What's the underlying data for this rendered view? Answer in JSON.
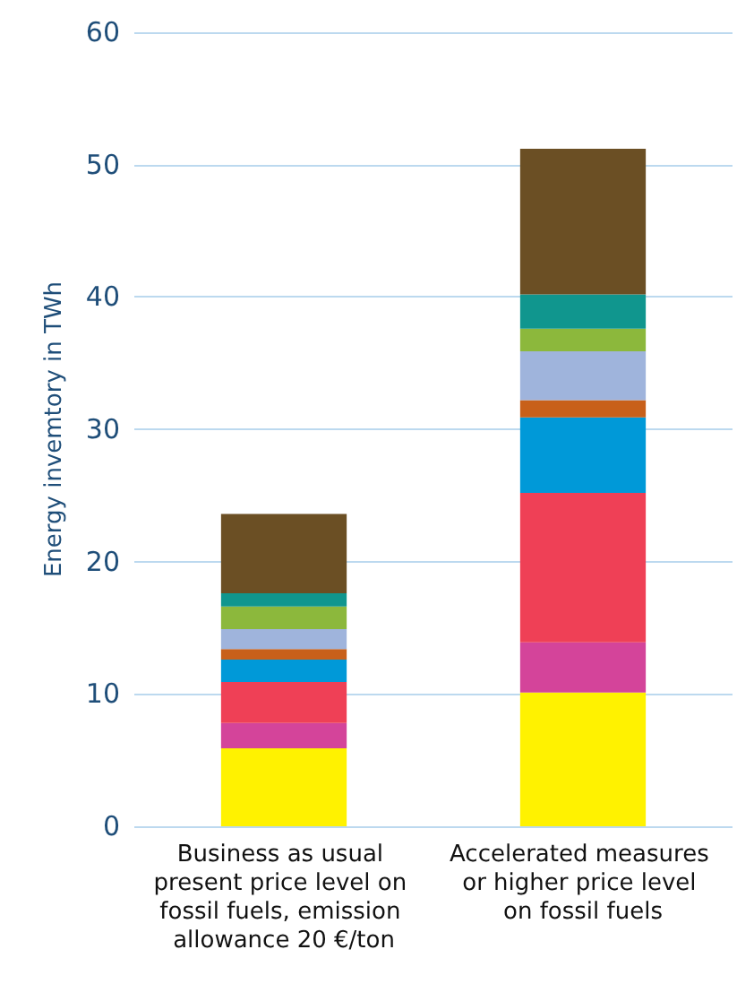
{
  "chart_data": {
    "type": "bar",
    "stacked": true,
    "ylabel": "Energy invemtory in TWh",
    "categories": [
      "Business as usual present price level on fossil fuels, emission allowance 20 €/ton",
      "Accelerated measures or higher price level on fossil fuels"
    ],
    "series": [
      {
        "color": "#fff200",
        "values": [
          5.9,
          10.1
        ]
      },
      {
        "color": "#d4449a",
        "values": [
          1.9,
          3.8
        ]
      },
      {
        "color": "#ef4056",
        "values": [
          3.1,
          11.3
        ]
      },
      {
        "color": "#0099d8",
        "values": [
          1.7,
          5.7
        ]
      },
      {
        "color": "#c8601a",
        "values": [
          0.8,
          1.3
        ]
      },
      {
        "color": "#9fb4dc",
        "values": [
          1.5,
          3.7
        ]
      },
      {
        "color": "#8cb83c",
        "values": [
          1.7,
          1.7
        ]
      },
      {
        "color": "#10968e",
        "values": [
          1.0,
          2.6
        ]
      },
      {
        "color": "#6b4f24",
        "values": [
          6.0,
          11.0
        ]
      }
    ],
    "ylim": [
      0,
      60
    ],
    "yticks": [
      0,
      10,
      20,
      30,
      40,
      50,
      60
    ],
    "grid": "y"
  }
}
